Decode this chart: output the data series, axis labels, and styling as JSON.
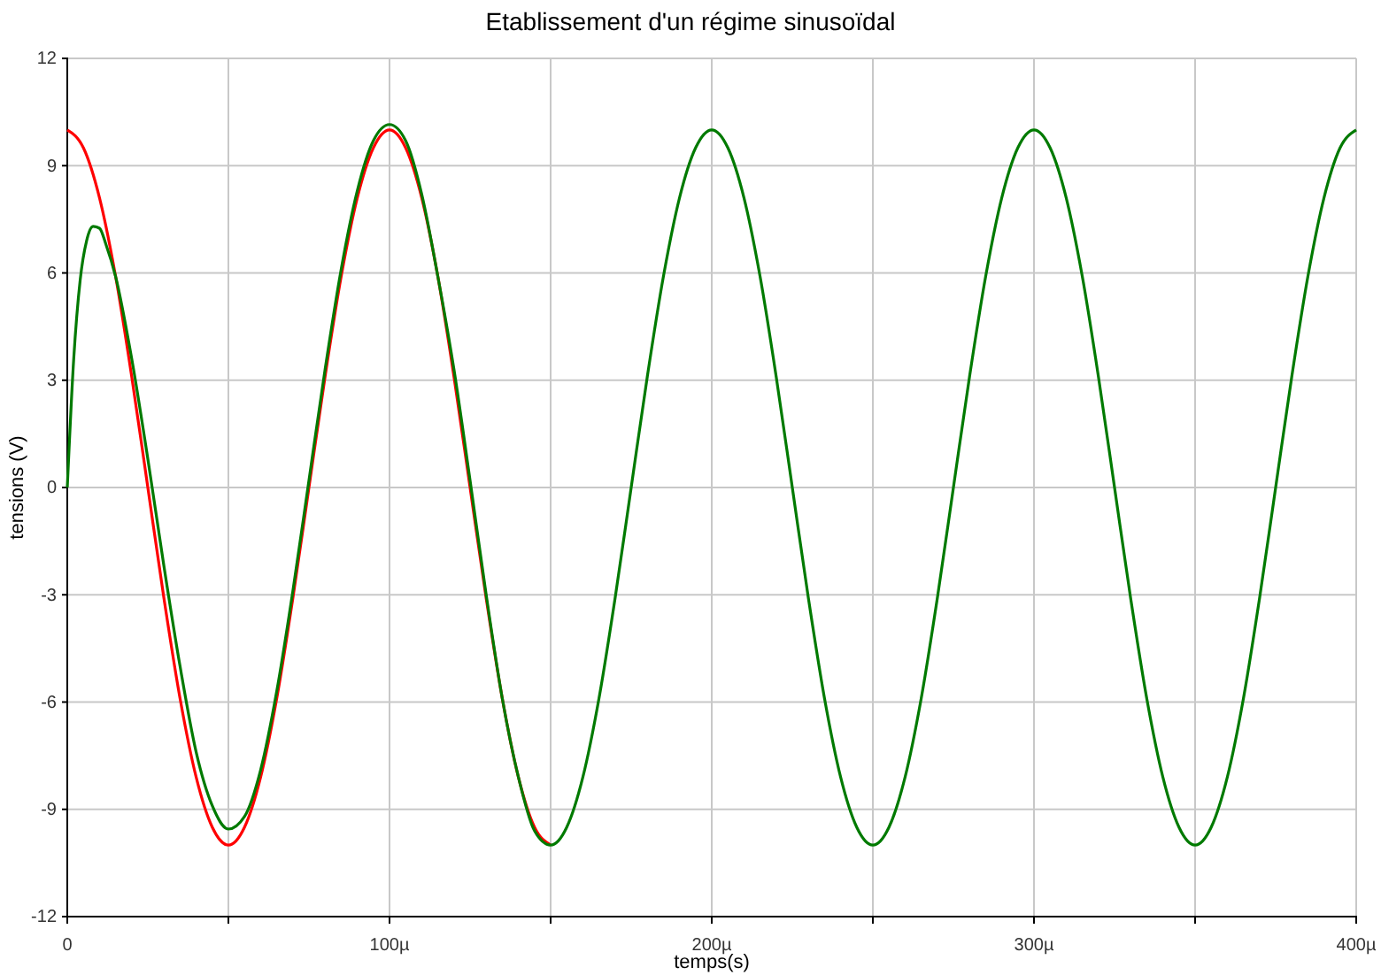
{
  "chart_data": {
    "type": "line",
    "title": "Etablissement d'un régime sinusoïdal",
    "xlabel": "temps(s)",
    "ylabel": "tensions (V)",
    "xlim": [
      0,
      400
    ],
    "xticks": [
      0,
      {
        "value": 50,
        "label": null
      },
      {
        "value": 100,
        "label": "100µ"
      },
      {
        "value": 150,
        "label": null
      },
      {
        "value": 200,
        "label": "200µ"
      },
      {
        "value": 250,
        "label": null
      },
      {
        "value": 300,
        "label": "300µ"
      },
      {
        "value": 350,
        "label": null
      },
      {
        "value": 400,
        "label": "400µ"
      }
    ],
    "ylim": [
      -12,
      12
    ],
    "yticks": [
      -12,
      -9,
      -6,
      -3,
      0,
      3,
      6,
      9,
      12
    ],
    "grid": true,
    "marker": "none",
    "line_style": "solid",
    "series": [
      {
        "color": "#ff0000",
        "x": [
          0,
          5,
          10,
          15,
          20,
          25,
          30,
          35,
          40,
          45,
          50,
          55,
          60,
          65,
          70,
          75,
          80,
          85,
          90,
          95,
          100,
          105,
          110,
          115,
          120,
          125,
          130,
          135,
          140,
          145,
          150
        ],
        "values": [
          10,
          9.5,
          8.1,
          5.9,
          3.1,
          0,
          -3.1,
          -5.9,
          -8.1,
          -9.5,
          -10,
          -9.5,
          -8.1,
          -5.9,
          -3.1,
          0,
          3.1,
          5.9,
          8.1,
          9.5,
          10,
          9.5,
          8.1,
          5.9,
          3.1,
          0,
          -3.1,
          -5.9,
          -8.1,
          -9.5,
          -10
        ]
      },
      {
        "color": "#007a00",
        "x": [
          0,
          2,
          4,
          6,
          8,
          10,
          12,
          15,
          20,
          25,
          30,
          35,
          40,
          45,
          50,
          55,
          60,
          65,
          70,
          75,
          80,
          85,
          90,
          95,
          100,
          105,
          110,
          115,
          120,
          125,
          130,
          135,
          140,
          145,
          150,
          155,
          160,
          165,
          170,
          175,
          180,
          185,
          190,
          195,
          200,
          205,
          210,
          215,
          220,
          225,
          230,
          235,
          240,
          245,
          250,
          255,
          260,
          265,
          270,
          275,
          280,
          285,
          290,
          295,
          300,
          305,
          310,
          315,
          320,
          325,
          330,
          335,
          340,
          345,
          350,
          355,
          360,
          365,
          370,
          375,
          380,
          385,
          390,
          395,
          400
        ],
        "values": [
          0,
          3.6,
          5.8,
          6.9,
          7.3,
          7.25,
          6.8,
          5.9,
          3.6,
          0.8,
          -2.2,
          -5,
          -7.4,
          -8.9,
          -9.55,
          -9.2,
          -7.9,
          -5.7,
          -2.9,
          0.2,
          3.3,
          6.1,
          8.3,
          9.7,
          10.15,
          9.7,
          8.2,
          5.9,
          3.3,
          0.2,
          -3,
          -5.9,
          -8.1,
          -9.6,
          -10,
          -9.5,
          -8.1,
          -5.9,
          -3.1,
          0,
          3.1,
          5.9,
          8.1,
          9.5,
          10,
          9.5,
          8.1,
          5.9,
          3.1,
          0,
          -3.1,
          -5.9,
          -8.1,
          -9.5,
          -10,
          -9.5,
          -8.1,
          -5.9,
          -3.1,
          0,
          3.1,
          5.9,
          8.1,
          9.5,
          10,
          9.5,
          8.1,
          5.9,
          3.1,
          0,
          -3.1,
          -5.9,
          -8.1,
          -9.5,
          -10,
          -9.5,
          -8.1,
          -5.9,
          -3.1,
          0,
          3.1,
          5.9,
          8.1,
          9.5,
          10
        ]
      }
    ]
  }
}
